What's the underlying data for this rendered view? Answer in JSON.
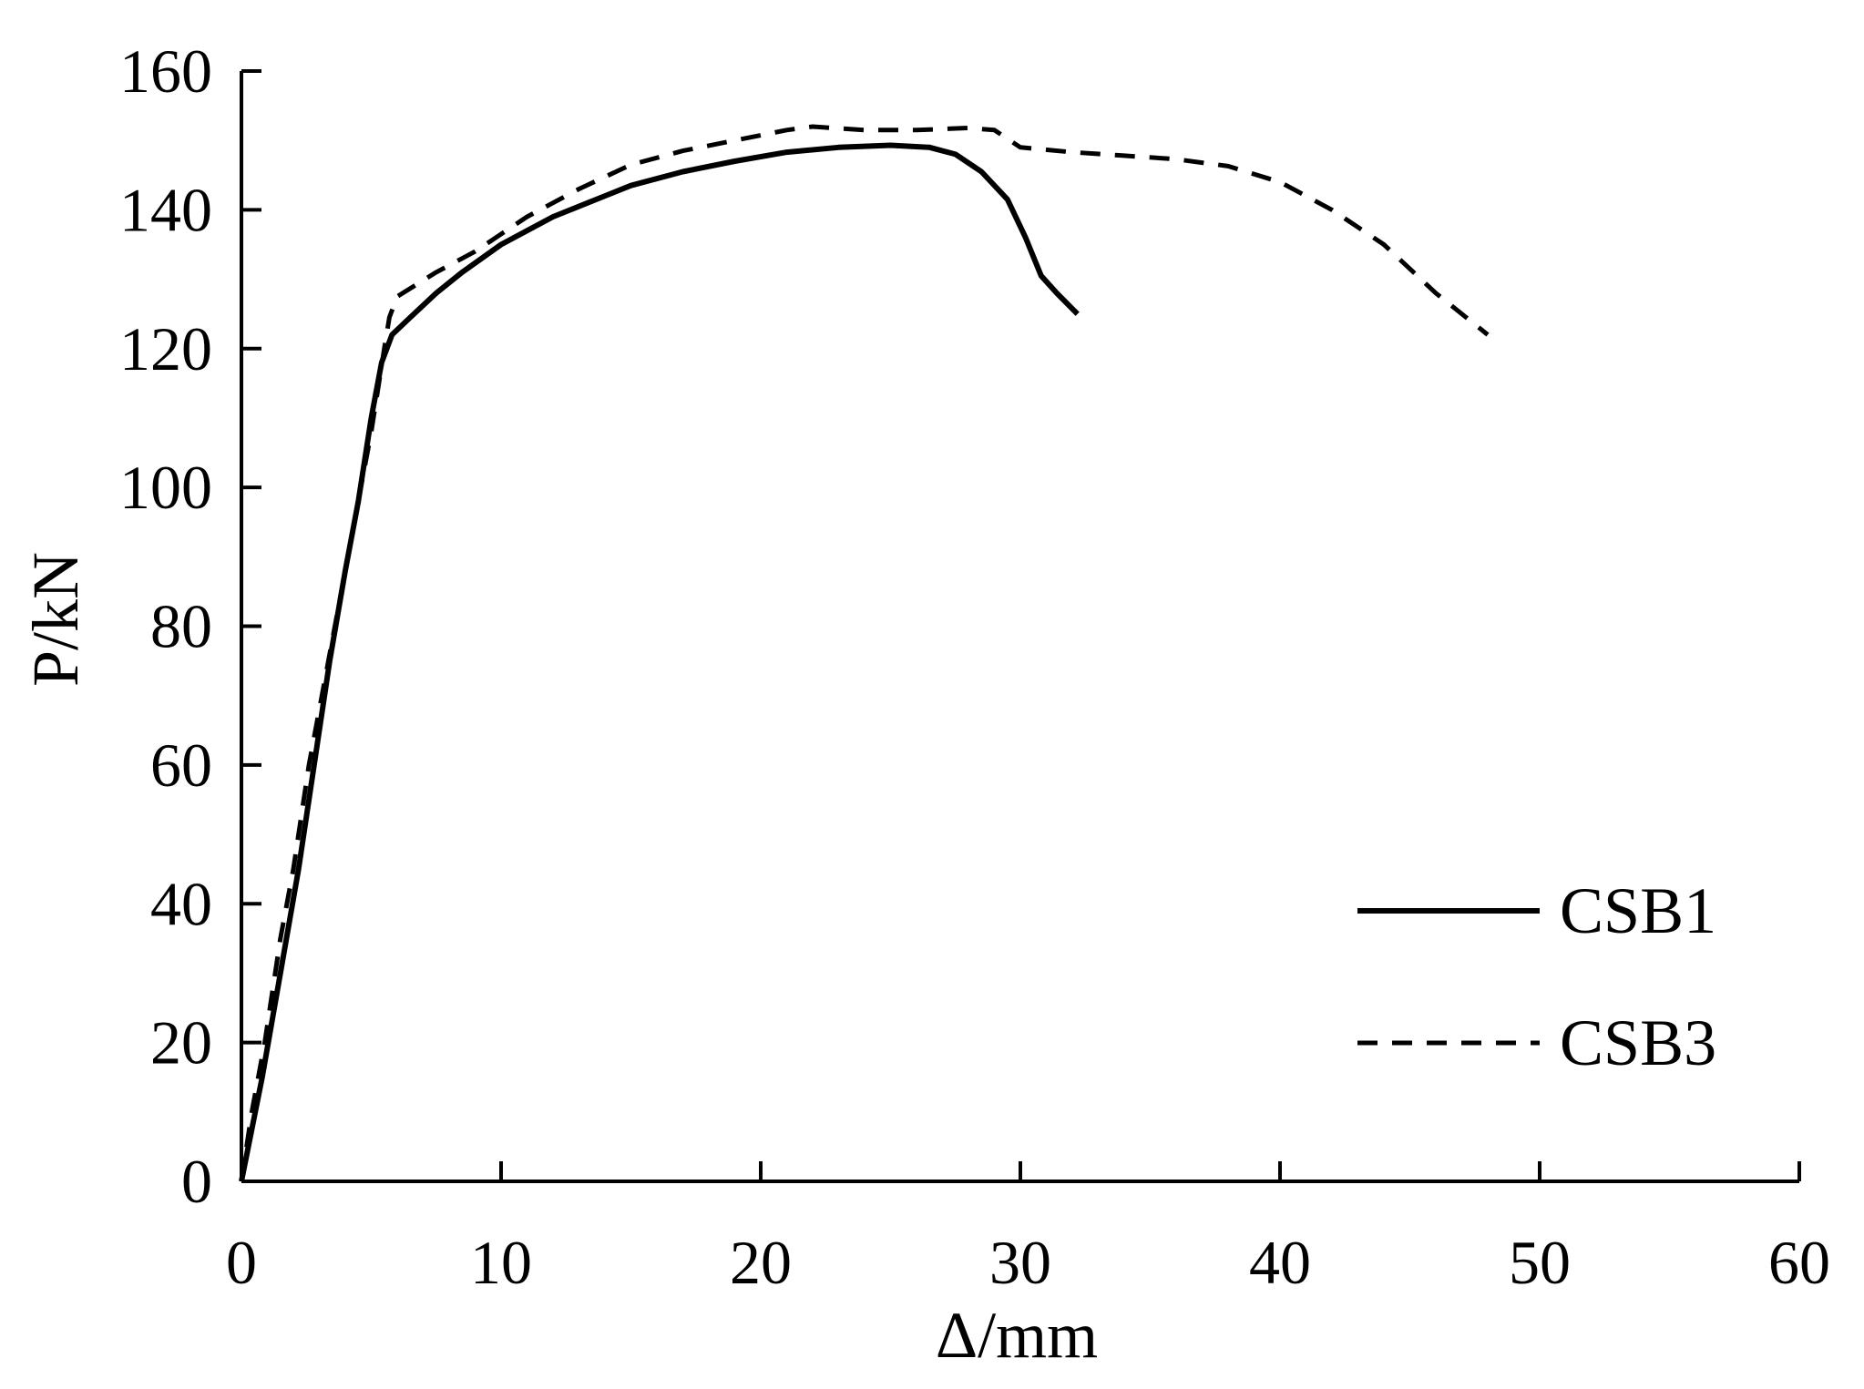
{
  "chart_data": {
    "type": "line",
    "xlabel": "Δ/mm",
    "ylabel": "P/kN",
    "xlim": [
      0,
      60
    ],
    "ylim": [
      0,
      160
    ],
    "xticks": [
      0,
      10,
      20,
      30,
      40,
      50,
      60
    ],
    "yticks": [
      0,
      20,
      40,
      60,
      80,
      100,
      120,
      140,
      160
    ],
    "grid": false,
    "legend_position": "bottom-right",
    "series": [
      {
        "name": "CSB1",
        "style": "solid",
        "color": "#000000",
        "points": [
          [
            0,
            0
          ],
          [
            0.8,
            15
          ],
          [
            1.5,
            30
          ],
          [
            2.2,
            45
          ],
          [
            2.8,
            60
          ],
          [
            3.4,
            75
          ],
          [
            4.0,
            88
          ],
          [
            4.5,
            98
          ],
          [
            5.0,
            110
          ],
          [
            5.4,
            118
          ],
          [
            5.8,
            122
          ],
          [
            6.5,
            124.5
          ],
          [
            7.5,
            128
          ],
          [
            8.5,
            131
          ],
          [
            10,
            135
          ],
          [
            12,
            139
          ],
          [
            14,
            142
          ],
          [
            15,
            143.5
          ],
          [
            17,
            145.5
          ],
          [
            19,
            147
          ],
          [
            21,
            148.3
          ],
          [
            23,
            149
          ],
          [
            25,
            149.3
          ],
          [
            26.5,
            149
          ],
          [
            27.5,
            148
          ],
          [
            28.5,
            145.5
          ],
          [
            29.5,
            141.5
          ],
          [
            30.2,
            136
          ],
          [
            30.8,
            130.5
          ],
          [
            31.4,
            128
          ],
          [
            32.2,
            125
          ]
        ]
      },
      {
        "name": "CSB3",
        "style": "dashed",
        "color": "#000000",
        "points": [
          [
            0,
            0
          ],
          [
            0.4,
            10
          ],
          [
            0.9,
            20
          ],
          [
            1.5,
            35
          ],
          [
            2.0,
            45
          ],
          [
            2.6,
            60
          ],
          [
            3.2,
            72
          ],
          [
            3.8,
            84
          ],
          [
            4.4,
            96
          ],
          [
            5.0,
            108
          ],
          [
            5.5,
            120
          ],
          [
            5.7,
            124.5
          ],
          [
            6.0,
            127.5
          ],
          [
            7.5,
            131
          ],
          [
            9,
            134
          ],
          [
            11,
            139
          ],
          [
            13,
            143
          ],
          [
            15,
            146.5
          ],
          [
            17,
            148.5
          ],
          [
            19,
            150
          ],
          [
            21,
            151.5
          ],
          [
            22,
            152
          ],
          [
            24,
            151.5
          ],
          [
            26,
            151.5
          ],
          [
            28,
            151.8
          ],
          [
            29,
            151.5
          ],
          [
            30,
            149
          ],
          [
            32,
            148.3
          ],
          [
            34,
            147.8
          ],
          [
            36,
            147.3
          ],
          [
            38,
            146.3
          ],
          [
            40,
            144
          ],
          [
            42,
            140
          ],
          [
            44,
            135
          ],
          [
            46,
            128
          ],
          [
            48,
            122
          ]
        ]
      }
    ]
  }
}
